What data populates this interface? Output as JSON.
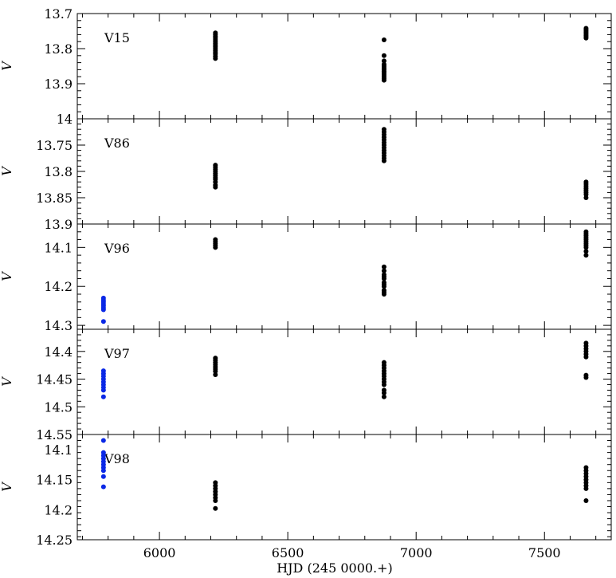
{
  "chart_data": {
    "type": "scatter",
    "xlabel": "HJD (245 0000.+)",
    "xlim": [
      5680,
      7760
    ],
    "x_ticks": [
      6000,
      6500,
      7000,
      7500
    ],
    "colors": {
      "black": "#000000",
      "blue": "#0a28e6"
    },
    "panels": [
      {
        "label": "V15",
        "ylabel": "V",
        "ylim": [
          13.7,
          14.0
        ],
        "inverted": true,
        "y_ticks": [
          "13.7",
          "13.8",
          "13.9",
          "14"
        ],
        "series": [
          {
            "color": "black",
            "points": [
              [
                6218,
                13.755
              ],
              [
                6218,
                13.76
              ],
              [
                6218,
                13.765
              ],
              [
                6218,
                13.77
              ],
              [
                6218,
                13.775
              ],
              [
                6218,
                13.78
              ],
              [
                6218,
                13.785
              ],
              [
                6218,
                13.79
              ],
              [
                6218,
                13.795
              ],
              [
                6218,
                13.8
              ],
              [
                6218,
                13.805
              ],
              [
                6218,
                13.81
              ],
              [
                6218,
                13.815
              ],
              [
                6218,
                13.822
              ],
              [
                6218,
                13.828
              ],
              [
                6875,
                13.775
              ],
              [
                6875,
                13.82
              ],
              [
                6875,
                13.835
              ],
              [
                6875,
                13.845
              ],
              [
                6875,
                13.85
              ],
              [
                6875,
                13.855
              ],
              [
                6875,
                13.86
              ],
              [
                6875,
                13.865
              ],
              [
                6875,
                13.87
              ],
              [
                6875,
                13.875
              ],
              [
                6875,
                13.88
              ],
              [
                6875,
                13.885
              ],
              [
                6875,
                13.89
              ],
              [
                7662,
                13.742
              ],
              [
                7662,
                13.746
              ],
              [
                7662,
                13.75
              ],
              [
                7662,
                13.754
              ],
              [
                7662,
                13.758
              ],
              [
                7662,
                13.762
              ],
              [
                7662,
                13.766
              ],
              [
                7662,
                13.77
              ]
            ]
          }
        ]
      },
      {
        "label": "V86",
        "ylabel": "V",
        "ylim": [
          13.7,
          13.9
        ],
        "inverted": true,
        "y_ticks": [
          "13.75",
          "13.8",
          "13.85",
          "13.9"
        ],
        "series": [
          {
            "color": "black",
            "points": [
              [
                6218,
                13.788
              ],
              [
                6218,
                13.792
              ],
              [
                6218,
                13.796
              ],
              [
                6218,
                13.8
              ],
              [
                6218,
                13.804
              ],
              [
                6218,
                13.808
              ],
              [
                6218,
                13.812
              ],
              [
                6218,
                13.815
              ],
              [
                6218,
                13.82
              ],
              [
                6218,
                13.826
              ],
              [
                6218,
                13.83
              ],
              [
                6875,
                13.72
              ],
              [
                6875,
                13.725
              ],
              [
                6875,
                13.73
              ],
              [
                6875,
                13.735
              ],
              [
                6875,
                13.74
              ],
              [
                6875,
                13.745
              ],
              [
                6875,
                13.75
              ],
              [
                6875,
                13.755
              ],
              [
                6875,
                13.76
              ],
              [
                6875,
                13.765
              ],
              [
                6875,
                13.77
              ],
              [
                6875,
                13.775
              ],
              [
                6875,
                13.78
              ],
              [
                7662,
                13.82
              ],
              [
                7662,
                13.824
              ],
              [
                7662,
                13.828
              ],
              [
                7662,
                13.832
              ],
              [
                7662,
                13.836
              ],
              [
                7662,
                13.84
              ],
              [
                7662,
                13.844
              ],
              [
                7662,
                13.85
              ]
            ]
          }
        ]
      },
      {
        "label": "V96",
        "ylabel": "V",
        "ylim": [
          14.04,
          14.31
        ],
        "inverted": true,
        "y_ticks": [
          "14.1",
          "14.2",
          "14.3"
        ],
        "series": [
          {
            "color": "black",
            "points": [
              [
                6218,
                14.08
              ],
              [
                6218,
                14.085
              ],
              [
                6218,
                14.09
              ],
              [
                6218,
                14.095
              ],
              [
                6218,
                14.1
              ],
              [
                6875,
                14.15
              ],
              [
                6875,
                14.16
              ],
              [
                6875,
                14.17
              ],
              [
                6875,
                14.175
              ],
              [
                6875,
                14.18
              ],
              [
                6875,
                14.19
              ],
              [
                6875,
                14.195
              ],
              [
                6875,
                14.2
              ],
              [
                6875,
                14.21
              ],
              [
                6875,
                14.215
              ],
              [
                6875,
                14.22
              ],
              [
                7662,
                14.06
              ],
              [
                7662,
                14.065
              ],
              [
                7662,
                14.07
              ],
              [
                7662,
                14.075
              ],
              [
                7662,
                14.08
              ],
              [
                7662,
                14.085
              ],
              [
                7662,
                14.09
              ],
              [
                7662,
                14.095
              ],
              [
                7662,
                14.1
              ],
              [
                7662,
                14.11
              ],
              [
                7662,
                14.12
              ]
            ]
          },
          {
            "color": "blue",
            "points": [
              [
                5782,
                14.23
              ],
              [
                5782,
                14.235
              ],
              [
                5782,
                14.24
              ],
              [
                5782,
                14.245
              ],
              [
                5782,
                14.25
              ],
              [
                5782,
                14.255
              ],
              [
                5782,
                14.26
              ],
              [
                5782,
                14.29
              ]
            ]
          }
        ]
      },
      {
        "label": "V97",
        "ylabel": "V",
        "ylim": [
          14.36,
          14.55
        ],
        "inverted": true,
        "y_ticks": [
          "14.4",
          "14.45",
          "14.5",
          "14.55"
        ],
        "series": [
          {
            "color": "black",
            "points": [
              [
                6218,
                14.412
              ],
              [
                6218,
                14.416
              ],
              [
                6218,
                14.42
              ],
              [
                6218,
                14.424
              ],
              [
                6218,
                14.428
              ],
              [
                6218,
                14.432
              ],
              [
                6218,
                14.436
              ],
              [
                6218,
                14.442
              ],
              [
                6875,
                14.42
              ],
              [
                6875,
                14.425
              ],
              [
                6875,
                14.43
              ],
              [
                6875,
                14.435
              ],
              [
                6875,
                14.44
              ],
              [
                6875,
                14.445
              ],
              [
                6875,
                14.45
              ],
              [
                6875,
                14.455
              ],
              [
                6875,
                14.46
              ],
              [
                6875,
                14.47
              ],
              [
                6875,
                14.475
              ],
              [
                6875,
                14.482
              ],
              [
                7662,
                14.385
              ],
              [
                7662,
                14.39
              ],
              [
                7662,
                14.395
              ],
              [
                7662,
                14.4
              ],
              [
                7662,
                14.405
              ],
              [
                7662,
                14.41
              ],
              [
                7662,
                14.443
              ],
              [
                7662,
                14.447
              ]
            ]
          },
          {
            "color": "blue",
            "points": [
              [
                5782,
                14.435
              ],
              [
                5782,
                14.44
              ],
              [
                5782,
                14.445
              ],
              [
                5782,
                14.45
              ],
              [
                5782,
                14.455
              ],
              [
                5782,
                14.46
              ],
              [
                5782,
                14.465
              ],
              [
                5782,
                14.47
              ],
              [
                5782,
                14.482
              ]
            ]
          }
        ]
      },
      {
        "label": "V98",
        "ylabel": "V",
        "ylim": [
          14.075,
          14.25
        ],
        "inverted": true,
        "y_ticks": [
          "14.1",
          "14.15",
          "14.2",
          "14.25"
        ],
        "series": [
          {
            "color": "black",
            "points": [
              [
                6218,
                14.155
              ],
              [
                6218,
                14.16
              ],
              [
                6218,
                14.165
              ],
              [
                6218,
                14.17
              ],
              [
                6218,
                14.175
              ],
              [
                6218,
                14.18
              ],
              [
                6218,
                14.185
              ],
              [
                6218,
                14.198
              ],
              [
                7662,
                14.13
              ],
              [
                7662,
                14.135
              ],
              [
                7662,
                14.14
              ],
              [
                7662,
                14.145
              ],
              [
                7662,
                14.15
              ],
              [
                7662,
                14.155
              ],
              [
                7662,
                14.16
              ],
              [
                7662,
                14.165
              ],
              [
                7662,
                14.185
              ]
            ]
          },
          {
            "color": "blue",
            "points": [
              [
                5782,
                14.085
              ],
              [
                5782,
                14.105
              ],
              [
                5782,
                14.11
              ],
              [
                5782,
                14.115
              ],
              [
                5782,
                14.12
              ],
              [
                5782,
                14.125
              ],
              [
                5782,
                14.13
              ],
              [
                5782,
                14.135
              ],
              [
                5782,
                14.145
              ],
              [
                5782,
                14.162
              ]
            ]
          }
        ]
      }
    ]
  }
}
